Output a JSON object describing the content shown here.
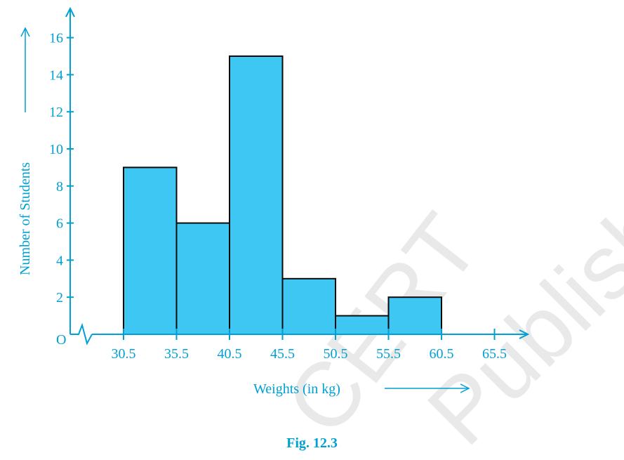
{
  "colors": {
    "axis": "#00a0d2",
    "bar_fill": "#3ec7f3",
    "bar_stroke": "#0a0a0a",
    "text": "#00a0d2",
    "watermark": "#e9e9e9"
  },
  "chart_data": {
    "type": "bar",
    "subtype": "histogram",
    "xlabel": "Weights (in kg)",
    "ylabel": "Number of Students",
    "origin_label": "O",
    "x_ticks": [
      "30.5",
      "35.5",
      "40.5",
      "45.5",
      "50.5",
      "55.5",
      "60.5",
      "65.5"
    ],
    "y_ticks": [
      2,
      4,
      6,
      8,
      10,
      12,
      14,
      16
    ],
    "xlim": [
      30.5,
      65.5
    ],
    "ylim": [
      0,
      16
    ],
    "x_axis_break": true,
    "bins": [
      {
        "from": 30.5,
        "to": 35.5,
        "value": 9
      },
      {
        "from": 35.5,
        "to": 40.5,
        "value": 6
      },
      {
        "from": 40.5,
        "to": 45.5,
        "value": 15
      },
      {
        "from": 45.5,
        "to": 50.5,
        "value": 3
      },
      {
        "from": 50.5,
        "to": 55.5,
        "value": 1
      },
      {
        "from": 55.5,
        "to": 60.5,
        "value": 2
      }
    ],
    "grid": false,
    "legend": "none"
  },
  "figure": {
    "caption": "Fig. 12.3"
  },
  "watermark": {
    "text_a": "CERT",
    "text_b": "Published"
  }
}
